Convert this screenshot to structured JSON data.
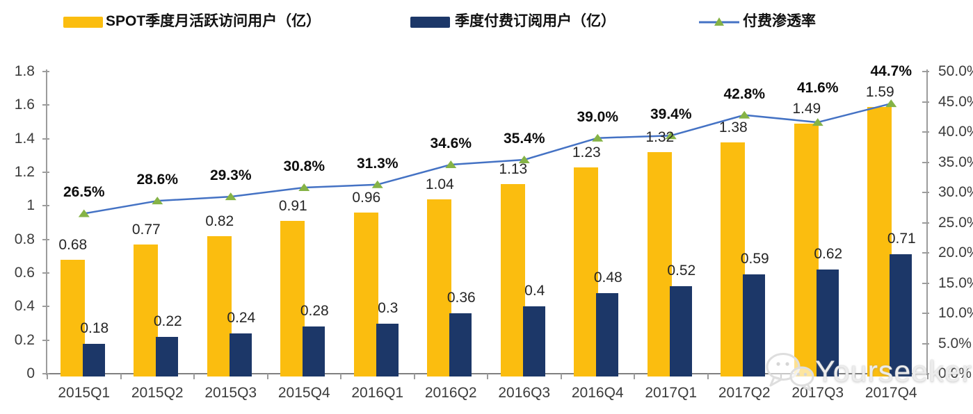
{
  "legend": {
    "items": [
      {
        "label": "SPOT季度月活跃访问用户（亿）",
        "swatch": "bar",
        "color": "#FBBD0F"
      },
      {
        "label": "季度付费订阅用户（亿）",
        "swatch": "bar",
        "color": "#1C3768"
      },
      {
        "label": "付费渗透率",
        "swatch": "line-triangle",
        "line_color": "#4472C4",
        "marker_color": "#85B346"
      }
    ]
  },
  "watermark": {
    "text": "Yourseeker",
    "icon": "wechat-chat-bubbles"
  },
  "chart_data": {
    "type": "bar+line combo",
    "title": "",
    "legend_position": "top",
    "grid": false,
    "categories": [
      "2015Q1",
      "2015Q2",
      "2015Q3",
      "2015Q4",
      "2016Q1",
      "2016Q2",
      "2016Q3",
      "2016Q4",
      "2017Q1",
      "2017Q2",
      "2017Q3",
      "2017Q4"
    ],
    "series": [
      {
        "name": "SPOT季度月活跃访问用户（亿）",
        "type": "bar",
        "axis": "left",
        "color": "#FBBD0F",
        "values": [
          0.68,
          0.77,
          0.82,
          0.91,
          0.96,
          1.04,
          1.13,
          1.23,
          1.32,
          1.38,
          1.49,
          1.59
        ],
        "labels": [
          "0.68",
          "0.77",
          "0.82",
          "0.91",
          "0.96",
          "1.04",
          "1.13",
          "1.23",
          "1.32",
          "1.38",
          "1.49",
          "1.59"
        ]
      },
      {
        "name": "季度付费订阅用户（亿）",
        "type": "bar",
        "axis": "left",
        "color": "#1C3768",
        "values": [
          0.18,
          0.22,
          0.24,
          0.28,
          0.3,
          0.36,
          0.4,
          0.48,
          0.52,
          0.59,
          0.62,
          0.71
        ],
        "labels": [
          "0.18",
          "0.22",
          "0.24",
          "0.28",
          "0.3",
          "0.36",
          "0.4",
          "0.48",
          "0.52",
          "0.59",
          "0.62",
          "0.71"
        ]
      },
      {
        "name": "付费渗透率",
        "type": "line",
        "axis": "right",
        "color": "#4472C4",
        "marker": "triangle",
        "marker_color": "#85B346",
        "values": [
          26.5,
          28.6,
          29.3,
          30.8,
          31.3,
          34.6,
          35.4,
          39.0,
          39.4,
          42.8,
          41.6,
          44.7
        ],
        "labels": [
          "26.5%",
          "28.6%",
          "29.3%",
          "30.8%",
          "31.3%",
          "34.6%",
          "35.4%",
          "39.0%",
          "39.4%",
          "42.8%",
          "41.6%",
          "44.7%"
        ]
      }
    ],
    "left_axis": {
      "min": 0,
      "max": 1.8,
      "step": 0.2,
      "ticks": [
        {
          "v": 1.8,
          "label": "1.8"
        },
        {
          "v": 1.6,
          "label": "1.6"
        },
        {
          "v": 1.4,
          "label": "1.4"
        },
        {
          "v": 1.2,
          "label": "1.2"
        },
        {
          "v": 1,
          "label": "1"
        },
        {
          "v": 0.8,
          "label": "0.8"
        },
        {
          "v": 0.6,
          "label": "0.6"
        },
        {
          "v": 0.4,
          "label": "0.4"
        },
        {
          "v": 0.2,
          "label": "0.2"
        },
        {
          "v": 0,
          "label": "0"
        }
      ]
    },
    "right_axis": {
      "min": 0,
      "max": 50,
      "step": 5,
      "ticks": [
        {
          "v": 50,
          "label": "50.0%"
        },
        {
          "v": 45,
          "label": "45.0%"
        },
        {
          "v": 40,
          "label": "40.0%"
        },
        {
          "v": 35,
          "label": "35.0%"
        },
        {
          "v": 30,
          "label": "30.0%"
        },
        {
          "v": 25,
          "label": "25.0%"
        },
        {
          "v": 20,
          "label": "20.0%"
        },
        {
          "v": 15,
          "label": "15.0%"
        },
        {
          "v": 10,
          "label": "10.0%"
        },
        {
          "v": 5,
          "label": "5.0%"
        },
        {
          "v": 0,
          "label": "0.0%"
        }
      ]
    }
  }
}
